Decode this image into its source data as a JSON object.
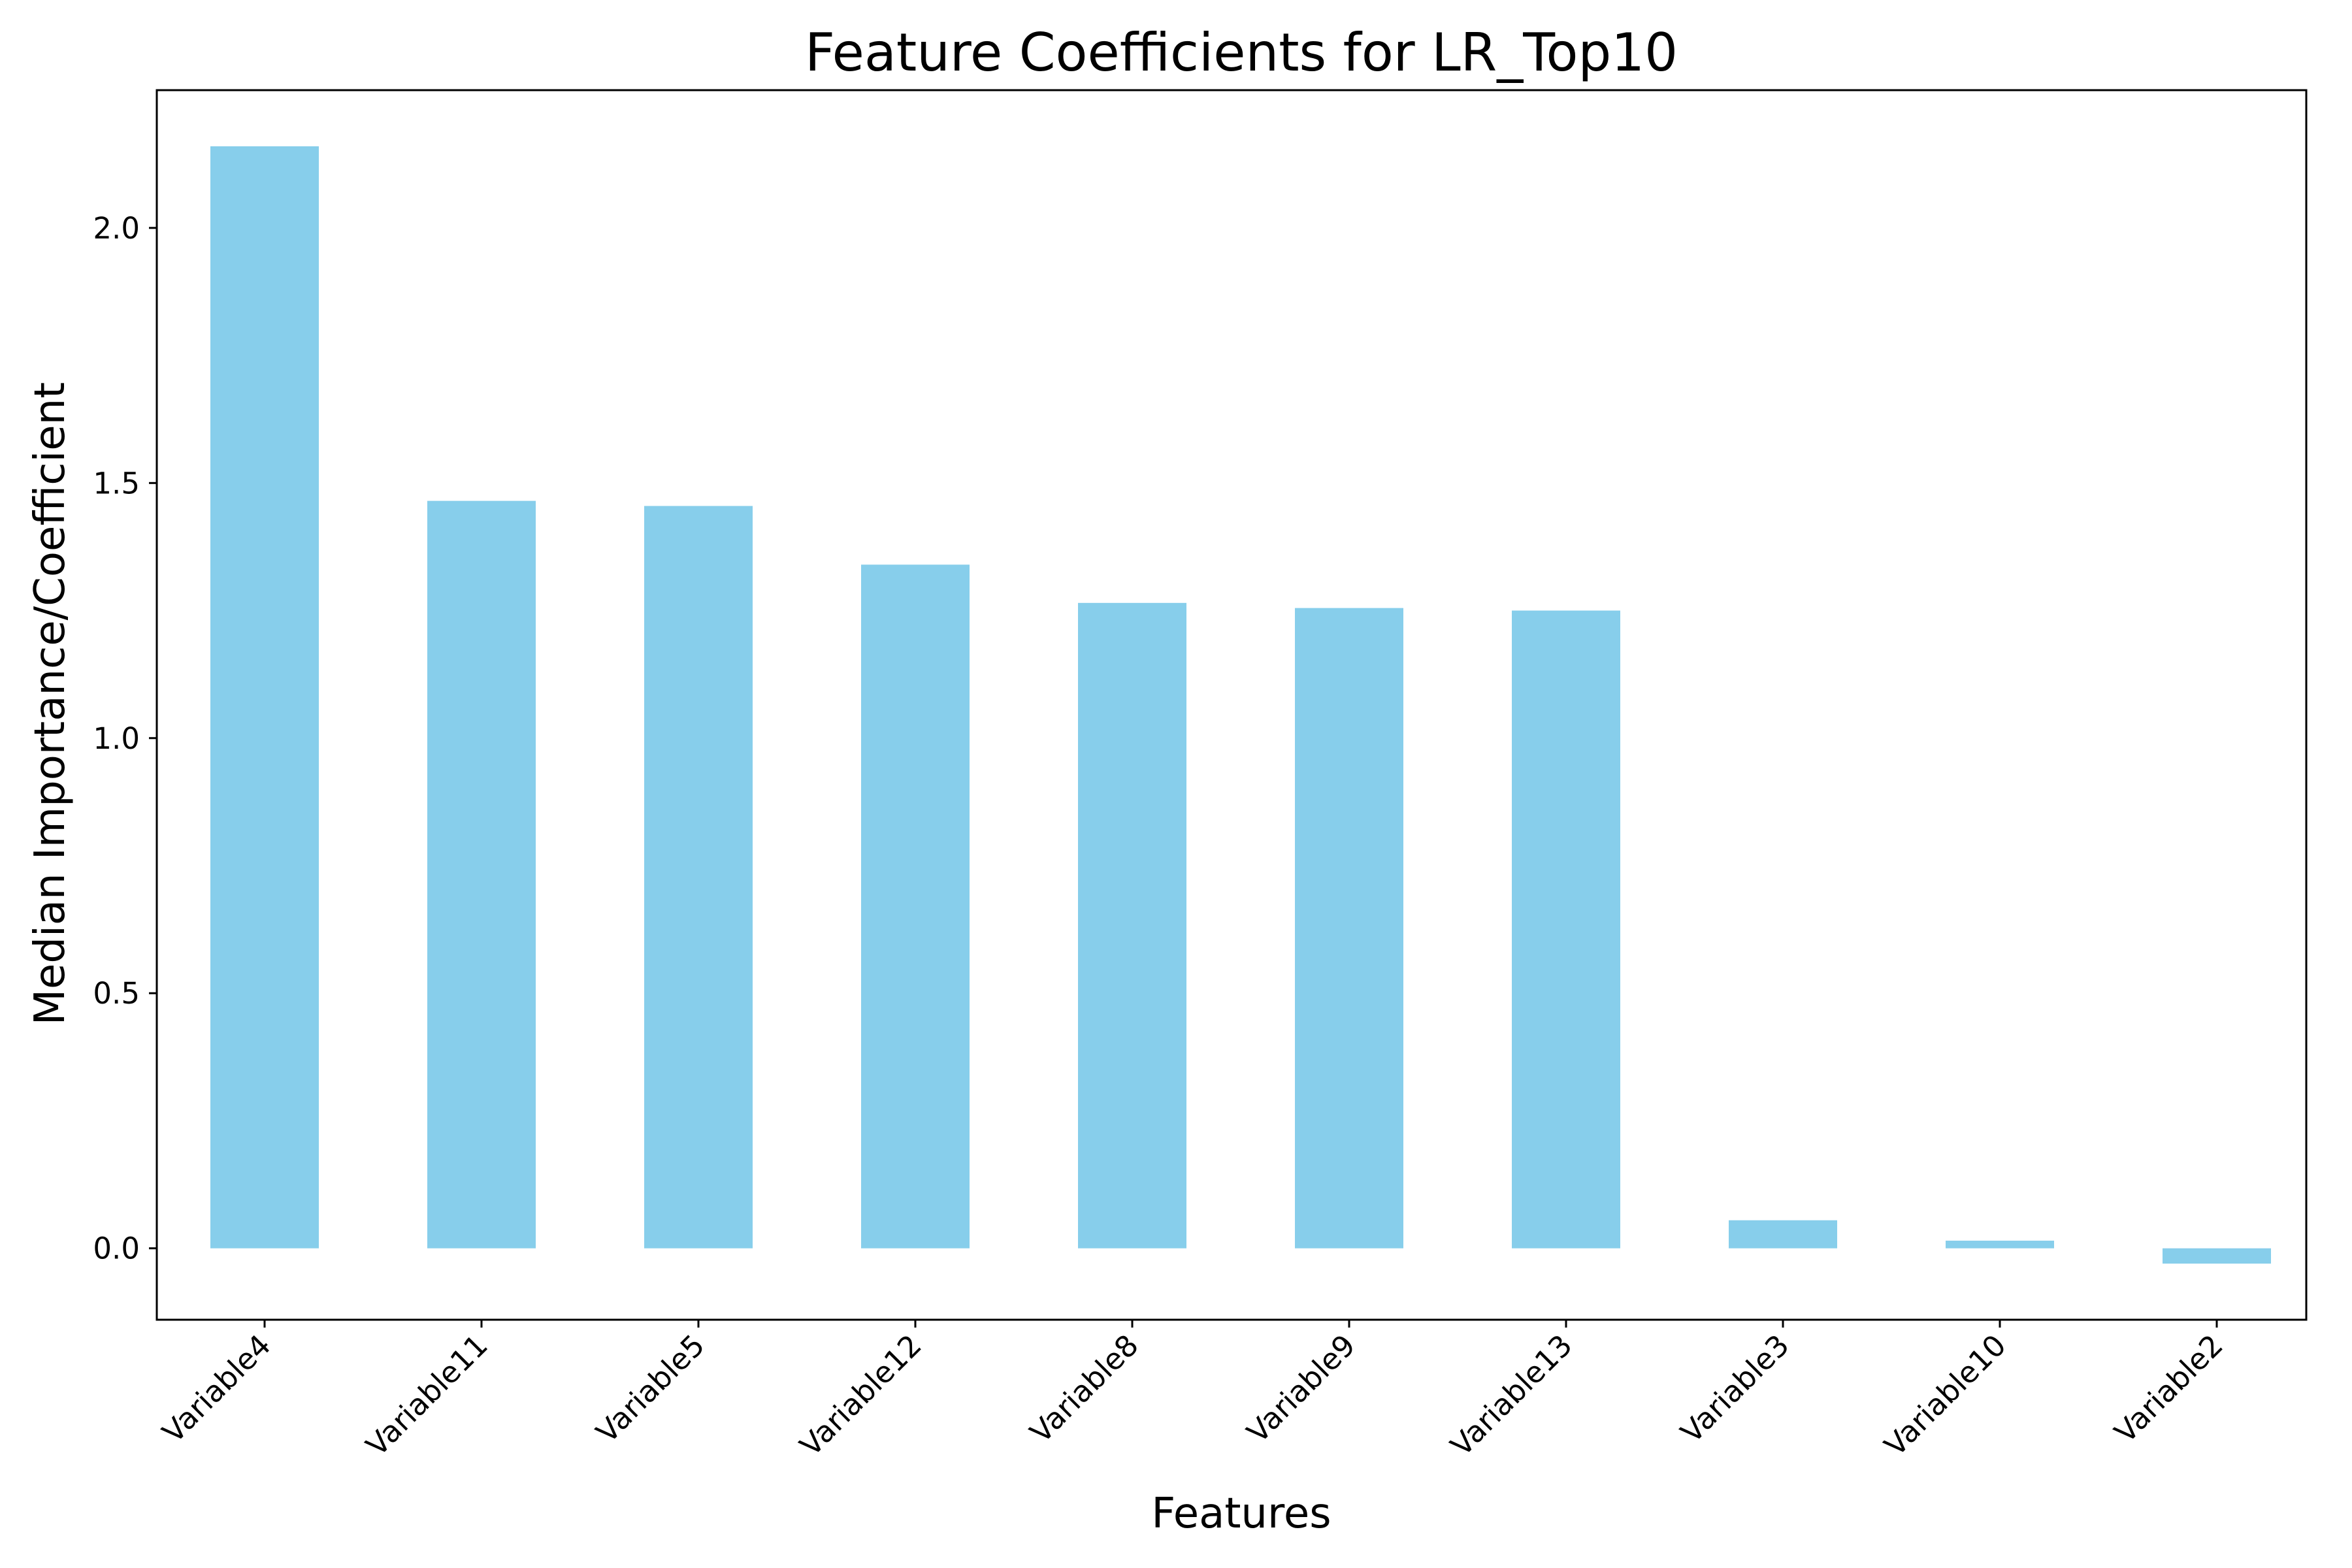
{
  "chart_data": {
    "type": "bar",
    "title": "Feature Coefficients for LR_Top10",
    "xlabel": "Features",
    "ylabel": "Median Importance/Coefficient",
    "categories": [
      "Variable4",
      "Variable11",
      "Variable5",
      "Variable12",
      "Variable8",
      "Variable9",
      "Variable13",
      "Variable3",
      "Variable10",
      "Variable2"
    ],
    "values": [
      2.16,
      1.465,
      1.455,
      1.34,
      1.265,
      1.255,
      1.25,
      0.055,
      0.015,
      -0.03
    ],
    "ylim": [
      -0.14,
      2.27
    ],
    "yticks": [
      0.0,
      0.5,
      1.0,
      1.5,
      2.0
    ],
    "ytick_labels": [
      "0.0",
      "0.5",
      "1.0",
      "1.5",
      "2.0"
    ],
    "bar_color": "#87ceeb",
    "grid": false,
    "legend": "none"
  }
}
